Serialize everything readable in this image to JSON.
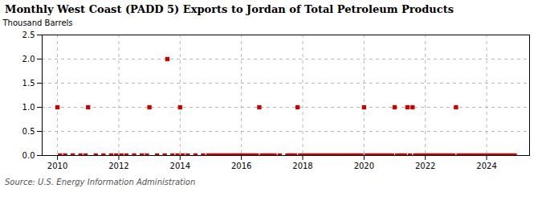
{
  "chart_data": {
    "type": "scatter",
    "title": "Monthly West Coast (PADD 5) Exports to Jordan of Total Petroleum Products",
    "ylabel": "Thousand Barrels",
    "caption": "Source: U.S. Energy Information Administration",
    "color": "#cc0000",
    "marker": "square",
    "grid": true,
    "xlim": [
      2009.5,
      2025.4
    ],
    "ylim": [
      0.0,
      2.5
    ],
    "xticks": [
      2010,
      2012,
      2014,
      2016,
      2018,
      2020,
      2022,
      2024
    ],
    "yticks": [
      {
        "value": 0.0,
        "label": "0.0"
      },
      0.5,
      {
        "value": 1.0,
        "label": "1.0"
      },
      1.5,
      {
        "value": 2.0,
        "label": "2.0"
      },
      2.5
    ],
    "x": [
      2010.0,
      2010.083,
      2010.25,
      2010.5,
      2010.75,
      2010.917,
      2011.0,
      2011.25,
      2011.5,
      2011.75,
      2011.917,
      2012.083,
      2012.25,
      2012.5,
      2012.75,
      2012.917,
      2013.0,
      2013.25,
      2013.5,
      2013.583,
      2013.75,
      2013.917,
      2014.0,
      2014.083,
      2014.25,
      2014.5,
      2014.75,
      2014.917,
      2015.0,
      2015.083,
      2015.167,
      2015.25,
      2015.333,
      2015.417,
      2015.5,
      2015.583,
      2015.667,
      2015.75,
      2015.833,
      2015.917,
      2016.0,
      2016.083,
      2016.167,
      2016.25,
      2016.333,
      2016.417,
      2016.5,
      2016.583,
      2016.667,
      2016.75,
      2016.833,
      2016.917,
      2017.0,
      2017.083,
      2017.25,
      2017.5,
      2017.583,
      2017.667,
      2017.75,
      2017.833,
      2017.917,
      2018.0,
      2018.083,
      2018.167,
      2018.25,
      2018.333,
      2018.417,
      2018.5,
      2018.583,
      2018.667,
      2018.75,
      2018.833,
      2018.917,
      2019.0,
      2019.083,
      2019.167,
      2019.25,
      2019.333,
      2019.417,
      2019.5,
      2019.583,
      2019.667,
      2019.75,
      2019.833,
      2019.917,
      2020.0,
      2020.083,
      2020.167,
      2020.25,
      2020.333,
      2020.417,
      2020.5,
      2020.583,
      2020.667,
      2020.75,
      2020.833,
      2020.917,
      2021.0,
      2021.083,
      2021.167,
      2021.25,
      2021.333,
      2021.417,
      2021.5,
      2021.583,
      2021.667,
      2021.75,
      2021.833,
      2021.917,
      2022.0,
      2022.083,
      2022.167,
      2022.25,
      2022.333,
      2022.417,
      2022.5,
      2022.583,
      2022.667,
      2022.75,
      2022.833,
      2022.917,
      2023.0,
      2023.083,
      2023.167,
      2023.25,
      2023.333,
      2023.417,
      2023.5,
      2023.583,
      2023.667,
      2023.75,
      2023.833,
      2023.917,
      2024.0,
      2024.083,
      2024.167,
      2024.25,
      2024.333,
      2024.417,
      2024.5,
      2024.583,
      2024.667,
      2024.75,
      2024.833,
      2024.917
    ],
    "values": [
      1.0,
      0.0,
      0.0,
      0.0,
      0.0,
      0.0,
      1.0,
      0.0,
      0.0,
      0.0,
      0.0,
      0.0,
      0.0,
      0.0,
      0.0,
      0.0,
      1.0,
      0.0,
      0.0,
      2.0,
      0.0,
      0.0,
      1.0,
      0.0,
      0.0,
      0.0,
      0.0,
      0.0,
      0.0,
      0.0,
      0.0,
      0.0,
      0.0,
      0.0,
      0.0,
      0.0,
      0.0,
      0.0,
      0.0,
      0.0,
      0.0,
      0.0,
      0.0,
      0.0,
      0.0,
      0.0,
      0.0,
      1.0,
      0.0,
      0.0,
      0.0,
      0.0,
      0.0,
      0.0,
      0.0,
      0.0,
      0.0,
      0.0,
      0.0,
      1.0,
      0.0,
      0.0,
      0.0,
      0.0,
      0.0,
      0.0,
      0.0,
      0.0,
      0.0,
      0.0,
      0.0,
      0.0,
      0.0,
      0.0,
      0.0,
      0.0,
      0.0,
      0.0,
      0.0,
      0.0,
      0.0,
      0.0,
      0.0,
      0.0,
      0.0,
      1.0,
      0.0,
      0.0,
      0.0,
      0.0,
      0.0,
      0.0,
      0.0,
      0.0,
      0.0,
      0.0,
      0.0,
      1.0,
      0.0,
      0.0,
      0.0,
      0.0,
      1.0,
      0.0,
      1.0,
      0.0,
      0.0,
      0.0,
      0.0,
      0.0,
      0.0,
      0.0,
      0.0,
      0.0,
      0.0,
      0.0,
      0.0,
      0.0,
      0.0,
      0.0,
      0.0,
      1.0,
      0.0,
      0.0,
      0.0,
      0.0,
      0.0,
      0.0,
      0.0,
      0.0,
      0.0,
      0.0,
      0.0,
      0.0,
      0.0,
      0.0,
      0.0,
      0.0,
      0.0,
      0.0,
      0.0,
      0.0,
      0.0,
      0.0,
      0.0
    ]
  }
}
